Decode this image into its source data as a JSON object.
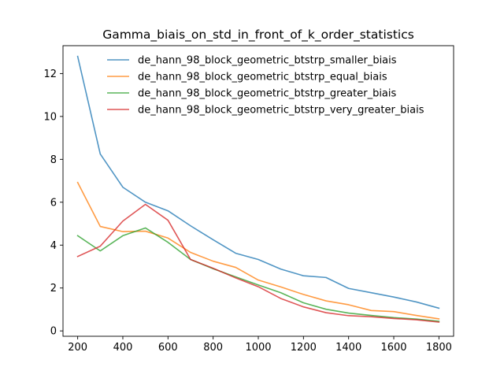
{
  "chart_data": {
    "type": "line",
    "title": "Gamma_biais_on_std_in_front_of_k_order_statistics",
    "xlabel": "",
    "ylabel": "",
    "xlim": [
      135,
      1865
    ],
    "ylim": [
      -0.25,
      13.3
    ],
    "xticks": [
      200,
      400,
      600,
      800,
      1000,
      1200,
      1400,
      1600,
      1800
    ],
    "yticks": [
      0,
      2,
      4,
      6,
      8,
      10,
      12
    ],
    "grid": false,
    "legend_position": "upper-right",
    "x": [
      200,
      300,
      400,
      500,
      600,
      700,
      800,
      900,
      1000,
      1100,
      1200,
      1300,
      1400,
      1500,
      1600,
      1700,
      1800
    ],
    "series": [
      {
        "name": "de_hann_98_block_geometric_btstrp_smaller_biais",
        "color": "#1f77b4",
        "values": [
          12.8,
          8.25,
          6.7,
          6.0,
          5.6,
          4.9,
          4.25,
          3.62,
          3.33,
          2.88,
          2.57,
          2.49,
          1.98,
          1.78,
          1.58,
          1.35,
          1.06
        ]
      },
      {
        "name": "de_hann_98_block_geometric_btstrp_equal_biais",
        "color": "#ff7f0e",
        "values": [
          6.92,
          4.87,
          4.63,
          4.65,
          4.33,
          3.66,
          3.25,
          2.96,
          2.37,
          2.05,
          1.7,
          1.4,
          1.22,
          0.95,
          0.9,
          0.72,
          0.56
        ]
      },
      {
        "name": "de_hann_98_block_geometric_btstrp_greater_biais",
        "color": "#2ca02c",
        "values": [
          4.44,
          3.73,
          4.44,
          4.8,
          4.13,
          3.33,
          2.9,
          2.52,
          2.14,
          1.78,
          1.31,
          1.01,
          0.83,
          0.72,
          0.62,
          0.55,
          0.45
        ]
      },
      {
        "name": "de_hann_98_block_geometric_btstrp_very_greater_biais",
        "color": "#d62728",
        "values": [
          3.47,
          3.95,
          5.12,
          5.9,
          5.16,
          3.33,
          2.92,
          2.47,
          2.06,
          1.51,
          1.12,
          0.85,
          0.71,
          0.66,
          0.58,
          0.52,
          0.41
        ]
      }
    ]
  }
}
